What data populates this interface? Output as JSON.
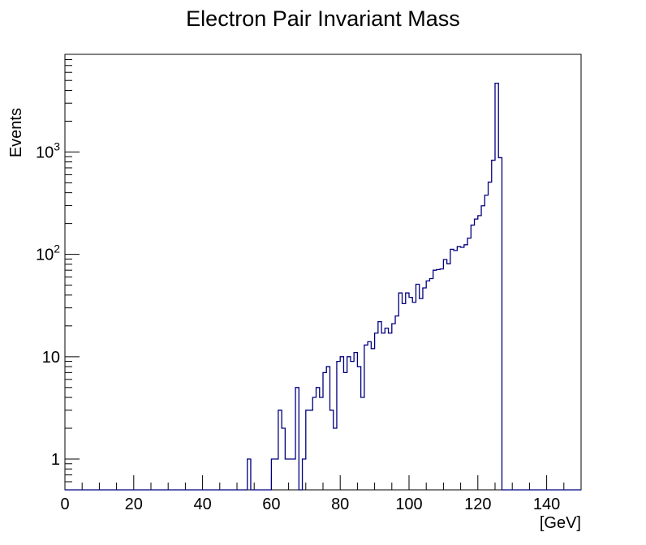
{
  "chart_data": {
    "type": "histogram",
    "title": "Electron Pair Invariant Mass",
    "xlabel": "[GeV]",
    "ylabel": "Events",
    "xlim": [
      0,
      150
    ],
    "ylim": [
      0.5,
      9000
    ],
    "yscale": "log",
    "bin_width": 1,
    "bin_start": 0,
    "line_color": "#00007f",
    "x_ticks": [
      0,
      20,
      40,
      60,
      80,
      100,
      120,
      140
    ],
    "x_tick_labels": [
      "0",
      "20",
      "40",
      "60",
      "80",
      "100",
      "120",
      "140"
    ],
    "y_ticks": [
      1,
      10,
      100,
      1000
    ],
    "y_tick_labels": [
      "1",
      "10",
      "10^2",
      "10^3"
    ],
    "counts": [
      0,
      0,
      0,
      0,
      0,
      0,
      0,
      0,
      0,
      0,
      0,
      0,
      0,
      0,
      0,
      0,
      0,
      0,
      0,
      0,
      0,
      0,
      0,
      0,
      0,
      0,
      0,
      0,
      0,
      0,
      0,
      0,
      0,
      0,
      0,
      0,
      0,
      0,
      0,
      0,
      0,
      0,
      0,
      0,
      0,
      0,
      0,
      0,
      0,
      0,
      0,
      0,
      0,
      1,
      0,
      0,
      0,
      0,
      0,
      0,
      1,
      1,
      3,
      2,
      1,
      1,
      1,
      5,
      0,
      1,
      3,
      3,
      4,
      5,
      4,
      7,
      8,
      3,
      2,
      9,
      10,
      7,
      10,
      9,
      11,
      8,
      4,
      13,
      14,
      12,
      17,
      22,
      17,
      19,
      17,
      21,
      25,
      42,
      33,
      42,
      38,
      34,
      51,
      37,
      47,
      55,
      58,
      70,
      71,
      72,
      89,
      81,
      112,
      109,
      119,
      117,
      124,
      144,
      193,
      221,
      239,
      298,
      379,
      508,
      831,
      4700,
      880,
      0,
      0,
      0,
      0,
      0,
      0,
      0,
      0,
      0,
      0,
      0,
      0,
      0,
      0,
      0,
      0,
      0,
      0,
      0,
      0,
      0,
      0,
      0
    ]
  }
}
